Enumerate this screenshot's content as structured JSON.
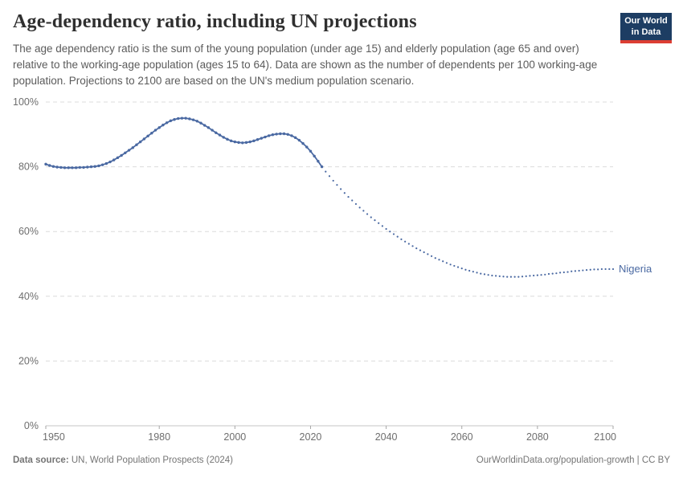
{
  "header": {
    "title": "Age-dependency ratio, including UN projections",
    "subtitle": "The age dependency ratio is the sum of the young population (under age 15) and elderly population (age 65 and over) relative to the working-age population (ages 15 to 64). Data are shown as the number of dependents per 100 working-age population. Projections to 2100 are based on the UN's medium population scenario.",
    "logo": {
      "line1": "Our World",
      "line2": "in Data"
    }
  },
  "chart_data": {
    "type": "line",
    "title": "Age-dependency ratio, including UN projections",
    "entity": "Nigeria",
    "unit": "%",
    "line_color": "#4a69a2",
    "grid_color": "#dcdcdc",
    "axis_line_color": "#c6c6c6",
    "axis_text_color": "#6e6e6e",
    "xlim": [
      1950,
      2100
    ],
    "ylim": [
      0,
      100
    ],
    "x_ticks": [
      1950,
      1980,
      2000,
      2020,
      2040,
      2060,
      2080,
      2100
    ],
    "y_ticks": [
      0,
      20,
      40,
      60,
      80,
      100
    ],
    "grid": "horizontal-dashed",
    "legend_position": "end-of-line",
    "series": [
      {
        "name": "Nigeria",
        "segments": [
          {
            "kind": "observed",
            "style": "solid-with-markers",
            "start_year": 1950,
            "values": [
              80.8,
              80.4,
              80.1,
              79.9,
              79.8,
              79.7,
              79.7,
              79.7,
              79.7,
              79.8,
              79.8,
              79.9,
              80.0,
              80.1,
              80.3,
              80.6,
              81.0,
              81.5,
              82.1,
              82.8,
              83.5,
              84.3,
              85.1,
              85.9,
              86.8,
              87.7,
              88.6,
              89.5,
              90.4,
              91.3,
              92.1,
              92.9,
              93.6,
              94.2,
              94.6,
              94.9,
              95.0,
              95.0,
              94.8,
              94.5,
              94.1,
              93.5,
              92.8,
              92.1,
              91.3,
              90.5,
              89.8,
              89.1,
              88.5,
              88.0,
              87.7,
              87.5,
              87.4,
              87.5,
              87.7,
              88.0,
              88.4,
              88.8,
              89.2,
              89.6,
              89.9,
              90.1,
              90.2,
              90.2,
              90.0,
              89.6,
              89.0,
              88.2,
              87.2,
              86.1,
              84.8,
              83.3,
              81.7,
              80.0
            ]
          },
          {
            "kind": "projection",
            "style": "dotted",
            "start_year": 2023,
            "values": [
              80.0,
              78.5,
              77.1,
              75.7,
              74.4,
              73.1,
              71.9,
              70.7,
              69.6,
              68.5,
              67.4,
              66.4,
              65.4,
              64.4,
              63.5,
              62.6,
              61.7,
              60.8,
              60.0,
              59.2,
              58.4,
              57.6,
              56.9,
              56.2,
              55.5,
              54.8,
              54.2,
              53.6,
              53.0,
              52.4,
              51.8,
              51.3,
              50.8,
              50.3,
              49.8,
              49.4,
              49.0,
              48.6,
              48.2,
              47.9,
              47.6,
              47.3,
              47.0,
              46.8,
              46.6,
              46.4,
              46.3,
              46.2,
              46.1,
              46.0,
              46.0,
              46.0,
              46.0,
              46.1,
              46.2,
              46.3,
              46.4,
              46.5,
              46.6,
              46.7,
              46.9,
              47.0,
              47.1,
              47.3,
              47.4,
              47.5,
              47.7,
              47.8,
              47.9,
              48.0,
              48.1,
              48.2,
              48.3,
              48.3,
              48.4,
              48.4,
              48.4,
              48.4
            ]
          }
        ]
      }
    ]
  },
  "footer": {
    "datasource_label": "Data source:",
    "datasource_text": " UN, World Population Prospects (2024)",
    "link_text": "OurWorldinData.org/population-growth | CC BY"
  }
}
